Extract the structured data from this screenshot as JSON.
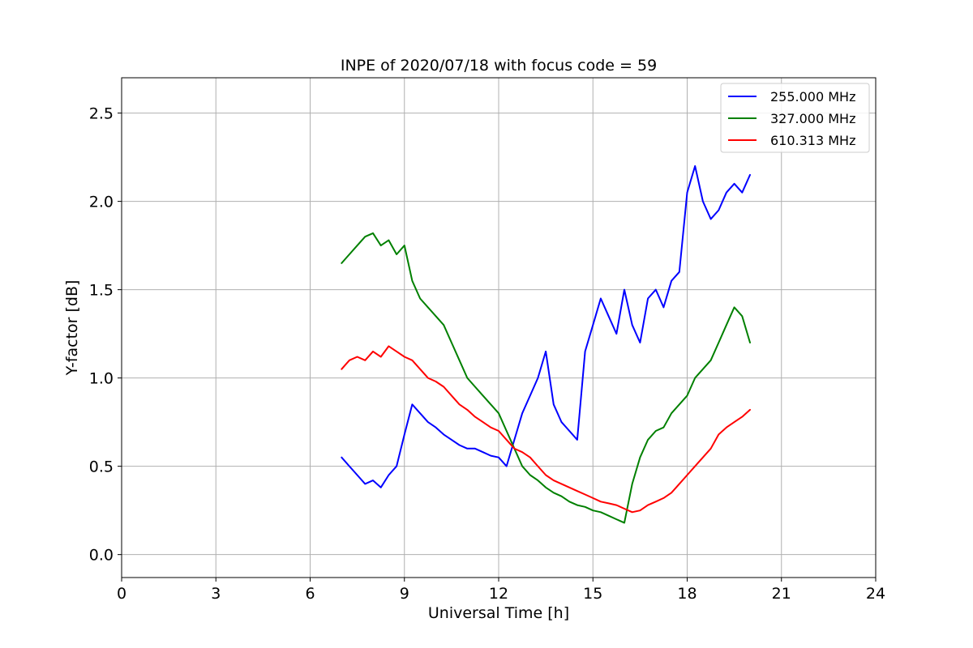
{
  "chart_data": {
    "type": "line",
    "title": "INPE of 2020/07/18 with focus code = 59",
    "xlabel": "Universal Time [h]",
    "ylabel": "Y-factor [dB]",
    "xlim": [
      0,
      24
    ],
    "ylim": [
      -0.13,
      2.7
    ],
    "xticks": [
      0,
      3,
      6,
      9,
      12,
      15,
      18,
      21,
      24
    ],
    "xtick_labels": [
      "0",
      "3",
      "6",
      "9",
      "12",
      "15",
      "18",
      "21",
      "24"
    ],
    "yticks": [
      0.0,
      0.5,
      1.0,
      1.5,
      2.0,
      2.5
    ],
    "ytick_labels": [
      "0.0",
      "0.5",
      "1.0",
      "1.5",
      "2.0",
      "2.5"
    ],
    "grid": true,
    "legend_position": "top-right",
    "series": [
      {
        "name": "255.000 MHz",
        "color": "#0000ff",
        "x": [
          7.0,
          7.25,
          7.5,
          7.75,
          8.0,
          8.25,
          8.5,
          8.75,
          9.0,
          9.25,
          9.5,
          9.75,
          10.0,
          10.25,
          10.5,
          10.75,
          11.0,
          11.25,
          11.5,
          11.75,
          12.0,
          12.25,
          12.5,
          12.75,
          13.0,
          13.25,
          13.5,
          13.75,
          14.0,
          14.25,
          14.5,
          14.75,
          15.0,
          15.25,
          15.5,
          15.75,
          16.0,
          16.25,
          16.5,
          16.75,
          17.0,
          17.25,
          17.5,
          17.75,
          18.0,
          18.25,
          18.5,
          18.75,
          19.0,
          19.25,
          19.5,
          19.75,
          20.0
        ],
        "y": [
          0.55,
          0.5,
          0.45,
          0.4,
          0.42,
          0.38,
          0.45,
          0.5,
          0.68,
          0.85,
          0.8,
          0.75,
          0.72,
          0.68,
          0.65,
          0.62,
          0.6,
          0.6,
          0.58,
          0.56,
          0.55,
          0.5,
          0.65,
          0.8,
          0.9,
          1.0,
          1.15,
          0.85,
          0.75,
          0.7,
          0.65,
          1.15,
          1.3,
          1.45,
          1.35,
          1.25,
          1.5,
          1.3,
          1.2,
          1.45,
          1.5,
          1.4,
          1.55,
          1.6,
          2.05,
          2.2,
          2.0,
          1.9,
          1.95,
          2.05,
          2.1,
          2.05,
          2.15
        ]
      },
      {
        "name": "327.000 MHz",
        "color": "#008000",
        "x": [
          7.0,
          7.25,
          7.5,
          7.75,
          8.0,
          8.25,
          8.5,
          8.75,
          9.0,
          9.25,
          9.5,
          9.75,
          10.0,
          10.25,
          10.5,
          10.75,
          11.0,
          11.25,
          11.5,
          11.75,
          12.0,
          12.25,
          12.5,
          12.75,
          13.0,
          13.25,
          13.5,
          13.75,
          14.0,
          14.25,
          14.5,
          14.75,
          15.0,
          15.25,
          15.5,
          15.75,
          16.0,
          16.25,
          16.5,
          16.75,
          17.0,
          17.25,
          17.5,
          17.75,
          18.0,
          18.25,
          18.5,
          18.75,
          19.0,
          19.25,
          19.5,
          19.75,
          20.0
        ],
        "y": [
          1.65,
          1.7,
          1.75,
          1.8,
          1.82,
          1.75,
          1.78,
          1.7,
          1.75,
          1.55,
          1.45,
          1.4,
          1.35,
          1.3,
          1.2,
          1.1,
          1.0,
          0.95,
          0.9,
          0.85,
          0.8,
          0.7,
          0.6,
          0.5,
          0.45,
          0.42,
          0.38,
          0.35,
          0.33,
          0.3,
          0.28,
          0.27,
          0.25,
          0.24,
          0.22,
          0.2,
          0.18,
          0.4,
          0.55,
          0.65,
          0.7,
          0.72,
          0.8,
          0.85,
          0.9,
          1.0,
          1.05,
          1.1,
          1.2,
          1.3,
          1.4,
          1.35,
          1.2
        ]
      },
      {
        "name": "610.313 MHz",
        "color": "#ff0000",
        "x": [
          7.0,
          7.25,
          7.5,
          7.75,
          8.0,
          8.25,
          8.5,
          8.75,
          9.0,
          9.25,
          9.5,
          9.75,
          10.0,
          10.25,
          10.5,
          10.75,
          11.0,
          11.25,
          11.5,
          11.75,
          12.0,
          12.25,
          12.5,
          12.75,
          13.0,
          13.25,
          13.5,
          13.75,
          14.0,
          14.25,
          14.5,
          14.75,
          15.0,
          15.25,
          15.5,
          15.75,
          16.0,
          16.25,
          16.5,
          16.75,
          17.0,
          17.25,
          17.5,
          17.75,
          18.0,
          18.25,
          18.5,
          18.75,
          19.0,
          19.25,
          19.5,
          19.75,
          20.0
        ],
        "y": [
          1.05,
          1.1,
          1.12,
          1.1,
          1.15,
          1.12,
          1.18,
          1.15,
          1.12,
          1.1,
          1.05,
          1.0,
          0.98,
          0.95,
          0.9,
          0.85,
          0.82,
          0.78,
          0.75,
          0.72,
          0.7,
          0.65,
          0.6,
          0.58,
          0.55,
          0.5,
          0.45,
          0.42,
          0.4,
          0.38,
          0.36,
          0.34,
          0.32,
          0.3,
          0.29,
          0.28,
          0.26,
          0.24,
          0.25,
          0.28,
          0.3,
          0.32,
          0.35,
          0.4,
          0.45,
          0.5,
          0.55,
          0.6,
          0.68,
          0.72,
          0.75,
          0.78,
          0.82
        ]
      }
    ]
  }
}
